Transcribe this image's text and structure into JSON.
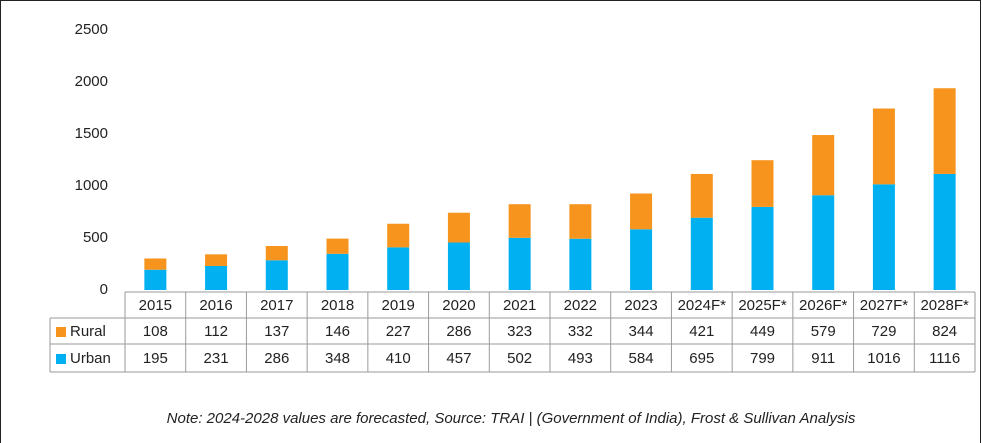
{
  "chart_data": {
    "type": "bar",
    "stacked": true,
    "categories": [
      "2015",
      "2016",
      "2017",
      "2018",
      "2019",
      "2020",
      "2021",
      "2022",
      "2023",
      "2024F*",
      "2025F*",
      "2026F*",
      "2027F*",
      "2028F*"
    ],
    "series": [
      {
        "name": "Rural",
        "color": "#f7941d",
        "values": [
          108,
          112,
          137,
          146,
          227,
          286,
          323,
          332,
          344,
          421,
          449,
          579,
          729,
          824
        ]
      },
      {
        "name": "Urban",
        "color": "#00b0f0",
        "values": [
          195,
          231,
          286,
          348,
          410,
          457,
          502,
          493,
          584,
          695,
          799,
          911,
          1016,
          1116
        ]
      }
    ],
    "ylim": [
      0,
      2500
    ],
    "yticks": [
      0,
      500,
      1000,
      1500,
      2000,
      2500
    ],
    "grid": false,
    "note": "Note: 2024-2028 values are forecasted, Source: TRAI | (Government of India), Frost & Sullivan Analysis"
  }
}
